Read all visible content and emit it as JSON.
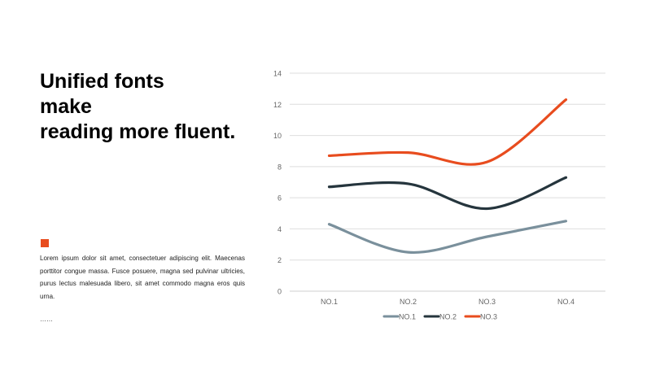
{
  "slide": {
    "title_lines": [
      "Unified fonts",
      "make",
      "reading more fluent."
    ],
    "body": "Lorem ipsum dolor sit amet, consectetuer adipiscing elit. Maecenas porttitor congue massa. Fusce posuere, magna sed pulvinar ultricies, purus lectus malesuada libero, sit amet commodo magna eros quis urna.",
    "ellipsis": "……",
    "accent_color": "#e84c1e"
  },
  "chart_data": {
    "type": "line",
    "smooth": true,
    "categories": [
      "NO.1",
      "NO.2",
      "NO.3",
      "NO.4"
    ],
    "series": [
      {
        "name": "NO.1",
        "values": [
          4.3,
          2.5,
          3.5,
          4.5
        ],
        "color": "#7a909c"
      },
      {
        "name": "NO.2",
        "values": [
          6.7,
          6.9,
          5.3,
          7.3
        ],
        "color": "#25353d"
      },
      {
        "name": "NO.3",
        "values": [
          8.7,
          8.9,
          8.3,
          12.3
        ],
        "color": "#e84c1e"
      }
    ],
    "ylim": [
      0,
      14
    ],
    "yticks": [
      0,
      2,
      4,
      6,
      8,
      10,
      12,
      14
    ],
    "grid": true,
    "legend_position": "bottom"
  }
}
